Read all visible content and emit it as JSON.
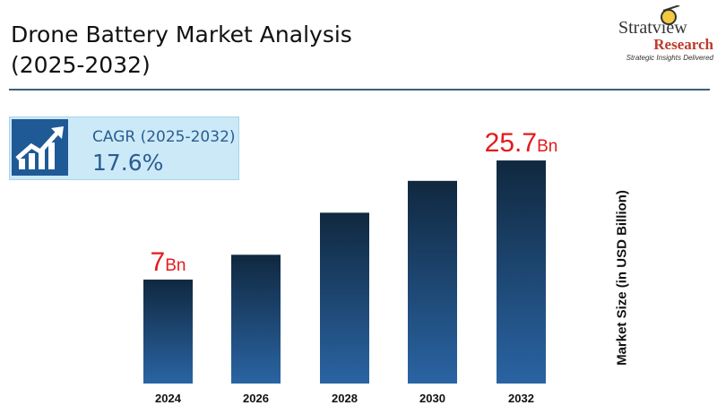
{
  "header": {
    "title_line1": "Drone Battery Market Analysis",
    "title_line2": "(2025-2032)"
  },
  "logo": {
    "name": "Stratview",
    "name2": "Research",
    "tagline": "Strategic Insights Delivered"
  },
  "cagr": {
    "label": "CAGR (2025-2032)",
    "value": "17.6%",
    "icon": "growth-chart-icon"
  },
  "chart_data": {
    "type": "bar",
    "categories": [
      "2024",
      "2026",
      "2028",
      "2030",
      "2032"
    ],
    "values": [
      7,
      10.9,
      17.5,
      22.5,
      25.7
    ],
    "ylabel": "Market Size (in USD Billion)",
    "data_labels": [
      {
        "index": 0,
        "num": "7",
        "unit": "Bn"
      },
      {
        "index": 4,
        "num": "25.7",
        "unit": "Bn"
      }
    ],
    "colors": {
      "bar_top": "#10283f",
      "bar_bottom": "#2a64a3",
      "label": "#e31b1b"
    }
  }
}
